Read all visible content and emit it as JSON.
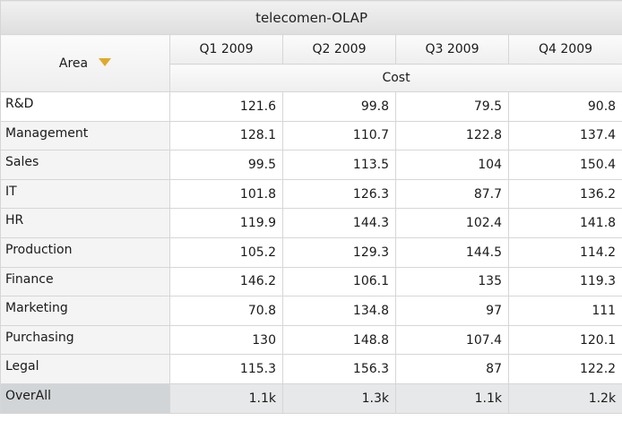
{
  "table": {
    "title": "telecomen-OLAP",
    "row_header": "Area",
    "sort_icon": "sort-descending-triangle-icon",
    "columns": [
      "Q1 2009",
      "Q2 2009",
      "Q3 2009",
      "Q4 2009"
    ],
    "measure": "Cost",
    "rows": [
      {
        "label": "R&D",
        "values": [
          "121.6",
          "99.8",
          "79.5",
          "90.8"
        ]
      },
      {
        "label": "Management",
        "values": [
          "128.1",
          "110.7",
          "122.8",
          "137.4"
        ]
      },
      {
        "label": "Sales",
        "values": [
          "99.5",
          "113.5",
          "104",
          "150.4"
        ]
      },
      {
        "label": "IT",
        "values": [
          "101.8",
          "126.3",
          "87.7",
          "136.2"
        ]
      },
      {
        "label": "HR",
        "values": [
          "119.9",
          "144.3",
          "102.4",
          "141.8"
        ]
      },
      {
        "label": "Production",
        "values": [
          "105.2",
          "129.3",
          "144.5",
          "114.2"
        ]
      },
      {
        "label": "Finance",
        "values": [
          "146.2",
          "106.1",
          "135",
          "119.3"
        ]
      },
      {
        "label": "Marketing",
        "values": [
          "70.8",
          "134.8",
          "97",
          "111"
        ]
      },
      {
        "label": "Purchasing",
        "values": [
          "130",
          "148.8",
          "107.4",
          "120.1"
        ]
      },
      {
        "label": "Legal",
        "values": [
          "115.3",
          "156.3",
          "87",
          "122.2"
        ]
      }
    ],
    "total": {
      "label": "OverAll",
      "values": [
        "1.1k",
        "1.3k",
        "1.1k",
        "1.2k"
      ]
    }
  },
  "colors": {
    "sort_icon": "#e0a92a",
    "total_row": "#e6e8e9",
    "grid": "#d6d6d6"
  }
}
